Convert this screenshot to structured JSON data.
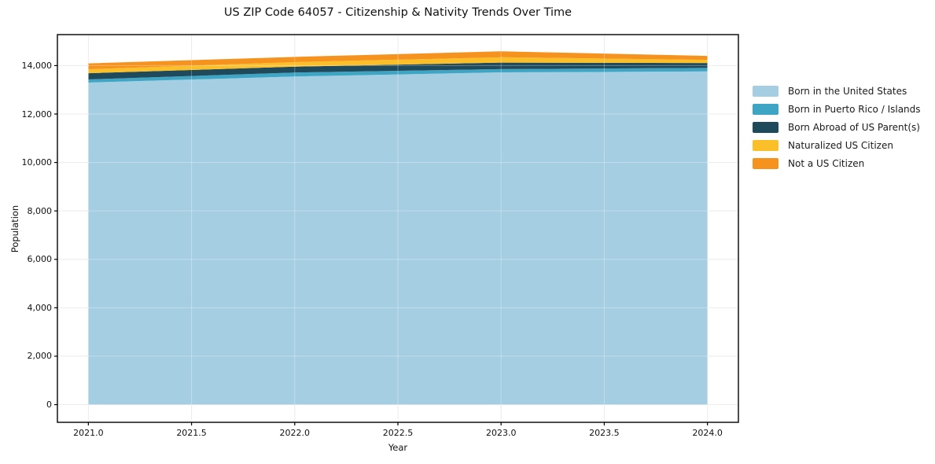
{
  "chart_data": {
    "type": "area",
    "stacked": true,
    "title": "US ZIP Code 64057 - Citizenship & Nativity Trends Over Time",
    "xlabel": "Year",
    "ylabel": "Population",
    "x": [
      2021,
      2022,
      2023,
      2024
    ],
    "series": [
      {
        "name": "Born in the United States",
        "color": "#A6CEE3",
        "values": [
          13300,
          13550,
          13720,
          13760
        ]
      },
      {
        "name": "Born in Puerto Rico / Islands",
        "color": "#3FA5C4",
        "values": [
          130,
          165,
          135,
          145
        ]
      },
      {
        "name": "Born Abroad of US Parent(s)",
        "color": "#1F4A5C",
        "values": [
          255,
          240,
          270,
          200
        ]
      },
      {
        "name": "Naturalized US Citizen",
        "color": "#FBBF2A",
        "values": [
          165,
          190,
          220,
          130
        ]
      },
      {
        "name": "Not a US Citizen",
        "color": "#F6921E",
        "values": [
          240,
          215,
          245,
          165
        ]
      }
    ],
    "totals": [
      14090,
      14360,
      14590,
      14400
    ],
    "xlim": [
      2020.85,
      2024.15
    ],
    "ylim": [
      -730,
      15280
    ],
    "x_ticks": [
      {
        "value": 2021.0,
        "label": "2021.0"
      },
      {
        "value": 2021.5,
        "label": "2021.5"
      },
      {
        "value": 2022.0,
        "label": "2022.0"
      },
      {
        "value": 2022.5,
        "label": "2022.5"
      },
      {
        "value": 2023.0,
        "label": "2023.0"
      },
      {
        "value": 2023.5,
        "label": "2023.5"
      },
      {
        "value": 2024.0,
        "label": "2024.0"
      }
    ],
    "y_ticks": [
      {
        "value": 0,
        "label": "0"
      },
      {
        "value": 2000,
        "label": "2,000"
      },
      {
        "value": 4000,
        "label": "4,000"
      },
      {
        "value": 6000,
        "label": "6,000"
      },
      {
        "value": 8000,
        "label": "8,000"
      },
      {
        "value": 10000,
        "label": "10,000"
      },
      {
        "value": 12000,
        "label": "12,000"
      },
      {
        "value": 14000,
        "label": "14,000"
      }
    ],
    "grid": true,
    "legend_position": "right-outside"
  }
}
